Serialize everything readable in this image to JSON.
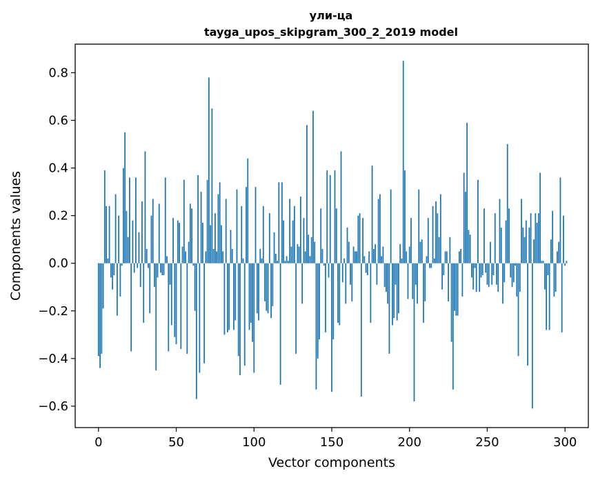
{
  "chart_data": {
    "type": "bar",
    "title": "ули-ца",
    "subtitle": "tayga_upos_skipgram_300_2_2019 model",
    "xlabel": "Vector components",
    "ylabel": "Components values",
    "xlim": [
      -15,
      315
    ],
    "ylim": [
      -0.69,
      0.92
    ],
    "xticks": [
      0,
      50,
      100,
      150,
      200,
      250,
      300
    ],
    "xtick_labels": [
      "0",
      "50",
      "100",
      "150",
      "200",
      "250",
      "300"
    ],
    "yticks": [
      -0.6,
      -0.4,
      -0.2,
      0.0,
      0.2,
      0.4,
      0.6,
      0.8
    ],
    "ytick_labels": [
      "−0.6",
      "−0.4",
      "−0.2",
      "0.0",
      "0.2",
      "0.4",
      "0.6",
      "0.8"
    ],
    "grid": false,
    "color": "#1f77b4",
    "values": [
      -0.39,
      -0.44,
      -0.38,
      -0.19,
      0.39,
      0.24,
      0.02,
      0.24,
      -0.06,
      -0.11,
      -0.05,
      0.29,
      -0.22,
      0.2,
      -0.14,
      -0.01,
      0.4,
      0.55,
      0.22,
      0.11,
      0.36,
      -0.37,
      0.18,
      -0.04,
      0.36,
      -0.02,
      0.13,
      -0.1,
      0.26,
      -0.25,
      0.47,
      0.06,
      -0.02,
      -0.21,
      0.2,
      0.27,
      -0.1,
      -0.45,
      -0.06,
      0.25,
      -0.04,
      -0.05,
      -0.05,
      0.36,
      0.03,
      -0.37,
      -0.09,
      -0.26,
      0.19,
      -0.31,
      -0.34,
      0.18,
      0.17,
      -0.36,
      0.07,
      0.35,
      0.05,
      -0.38,
      0.09,
      0.25,
      0.23,
      -0.01,
      -0.2,
      -0.57,
      0.37,
      -0.46,
      0.3,
      0.17,
      -0.42,
      0.05,
      0.35,
      0.78,
      0.16,
      0.65,
      0.06,
      0.21,
      0.05,
      0.29,
      0.34,
      0.16,
      0.05,
      -0.3,
      0.27,
      -0.29,
      -0.28,
      0.14,
      0.06,
      -0.28,
      -0.24,
      0.31,
      -0.39,
      -0.47,
      0.24,
      0.02,
      -0.43,
      0.32,
      0.44,
      -0.28,
      -0.25,
      -0.33,
      -0.46,
      0.32,
      -0.21,
      -0.24,
      0.06,
      0.02,
      0.24,
      -0.16,
      -0.2,
      -0.21,
      0.21,
      -0.23,
      -0.18,
      0.13,
      0.04,
      0.01,
      0.34,
      -0.51,
      0.34,
      0.18,
      0.01,
      0.03,
      0.01,
      0.27,
      0.07,
      0.18,
      0.24,
      -0.38,
      0.08,
      0.07,
      0.28,
      -0.17,
      0.19,
      0.05,
      0.58,
      0.12,
      0.03,
      0.11,
      0.64,
      0.09,
      -0.53,
      -0.4,
      -0.32,
      0.23,
      0.06,
      -0.01,
      -0.29,
      0.39,
      -0.06,
      0.37,
      -0.54,
      -0.32,
      0.39,
      0.23,
      -0.25,
      -0.26,
      0.47,
      -0.08,
      0.02,
      -0.17,
      0.15,
      0.09,
      -0.09,
      -0.16,
      0.07,
      0.05,
      0.05,
      0.2,
      0.21,
      -0.56,
      0.19,
      0.03,
      -0.04,
      -0.05,
      0.05,
      -0.25,
      0.41,
      0.06,
      0.08,
      -0.09,
      0.27,
      0.29,
      0.03,
      0.07,
      -0.1,
      -0.12,
      -0.17,
      -0.38,
      0.31,
      -0.26,
      -0.23,
      -0.09,
      -0.24,
      -0.21,
      0.08,
      0.02,
      0.85,
      0.39,
      0.05,
      -0.15,
      0.07,
      0.19,
      -0.15,
      -0.58,
      -0.09,
      -0.17,
      0.31,
      0.09,
      0.1,
      -0.25,
      -0.16,
      0.03,
      0.19,
      -0.02,
      -0.02,
      0.24,
      0.02,
      0.26,
      0.21,
      0.11,
      0.29,
      -0.11,
      -0.05,
      0.05,
      0.05,
      -0.16,
      0.11,
      -0.33,
      -0.53,
      -0.2,
      -0.22,
      -0.22,
      0.05,
      0.06,
      -0.14,
      0.38,
      0.3,
      0.59,
      0.14,
      0.12,
      -0.06,
      -0.11,
      -0.02,
      -0.12,
      0.35,
      -0.12,
      -0.06,
      -0.05,
      0.23,
      -0.04,
      -0.09,
      -0.1,
      0.09,
      -0.09,
      -0.05,
      0.21,
      -0.09,
      -0.12,
      0.27,
      0.15,
      -0.17,
      -0.08,
      0.18,
      0.5,
      0.23,
      -0.06,
      -0.1,
      -0.08,
      -0.01,
      -0.14,
      -0.39,
      -0.12,
      0.27,
      0.15,
      0.11,
      0.18,
      -0.43,
      0.15,
      0.21,
      -0.61,
      0.1,
      0.21,
      0.17,
      0.21,
      0.38,
      0.01,
      0.01,
      -0.11,
      -0.28,
      -0.05,
      -0.28,
      0.1,
      0.22,
      -0.14,
      -0.12,
      0.05,
      0.09,
      0.36,
      -0.29,
      0.2,
      -0.01,
      0.01
    ]
  }
}
